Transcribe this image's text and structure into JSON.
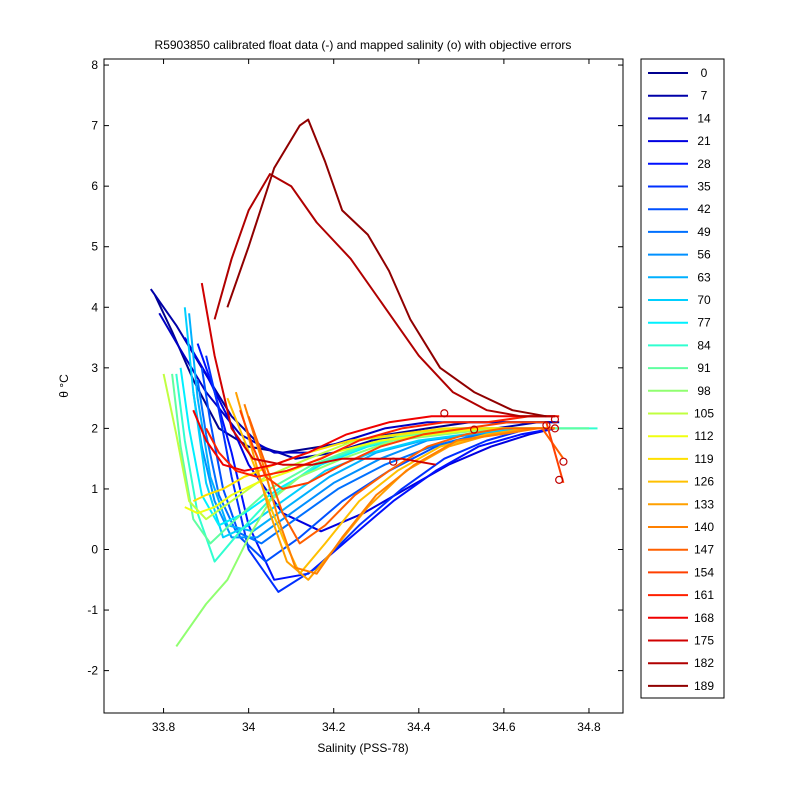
{
  "chart_data": {
    "type": "line",
    "title": "R5903850 calibrated float data (-) and mapped salinity (o) with objective errors",
    "xlabel": "Salinity (PSS-78)",
    "ylabel": "θ °C",
    "xlim": [
      33.66,
      34.88
    ],
    "ylim": [
      -2.7,
      8.1
    ],
    "x_ticks": [
      "33.8",
      "34",
      "34.2",
      "34.4",
      "34.6",
      "34.8"
    ],
    "y_ticks": [
      "8",
      "7",
      "6",
      "5",
      "4",
      "3",
      "2",
      "1",
      "0",
      "-1",
      "-2"
    ],
    "grid": false,
    "legend_position": "outside-right",
    "series": [
      {
        "name": "0",
        "color": "#00008f",
        "x": [
          33.78,
          33.82,
          33.87,
          33.93,
          34.0,
          34.08,
          34.17,
          34.25,
          34.33,
          34.42,
          34.52,
          34.63,
          34.72
        ],
        "y": [
          4.2,
          3.6,
          2.8,
          2.0,
          1.7,
          1.6,
          1.7,
          1.8,
          1.9,
          2.0,
          2.1,
          2.1,
          2.1
        ]
      },
      {
        "name": "7",
        "color": "#0000a8",
        "x": [
          33.77,
          33.83,
          33.89,
          33.96,
          34.03,
          34.11,
          34.2,
          34.29,
          34.38,
          34.48,
          34.58,
          34.68,
          34.73
        ],
        "y": [
          4.3,
          3.7,
          3.0,
          2.2,
          1.7,
          1.5,
          1.6,
          1.8,
          1.9,
          2.0,
          2.0,
          2.1,
          2.1
        ]
      },
      {
        "name": "14",
        "color": "#0000c4",
        "x": [
          33.79,
          33.84,
          33.9,
          33.98,
          34.06,
          34.14,
          34.23,
          34.32,
          34.42,
          34.52,
          34.62,
          34.71
        ],
        "y": [
          3.9,
          3.3,
          2.6,
          1.9,
          1.6,
          1.6,
          1.8,
          2.0,
          2.1,
          2.1,
          2.1,
          2.1
        ]
      },
      {
        "name": "21",
        "color": "#0000e0",
        "x": [
          33.85,
          33.9,
          33.95,
          34.0,
          34.08,
          34.17,
          34.27,
          34.37,
          34.47,
          34.57,
          34.66,
          34.72
        ],
        "y": [
          3.5,
          2.9,
          2.2,
          1.4,
          0.6,
          0.3,
          0.6,
          1.0,
          1.4,
          1.7,
          1.9,
          2.0
        ]
      },
      {
        "name": "28",
        "color": "#0010ff",
        "x": [
          33.88,
          33.92,
          33.96,
          34.0,
          34.06,
          34.14,
          34.24,
          34.34,
          34.44,
          34.54,
          34.64,
          34.72
        ],
        "y": [
          3.4,
          2.6,
          1.6,
          0.4,
          -0.5,
          -0.4,
          0.2,
          0.8,
          1.3,
          1.7,
          1.9,
          2.0
        ]
      },
      {
        "name": "35",
        "color": "#0030ff",
        "x": [
          33.9,
          33.93,
          33.96,
          34.0,
          34.07,
          34.16,
          34.26,
          34.36,
          34.46,
          34.56,
          34.66,
          34.72
        ],
        "y": [
          3.2,
          2.3,
          1.2,
          0.0,
          -0.7,
          -0.3,
          0.4,
          1.0,
          1.5,
          1.8,
          2.0,
          2.0
        ]
      },
      {
        "name": "42",
        "color": "#0050ff",
        "x": [
          33.89,
          33.91,
          33.94,
          33.98,
          34.04,
          34.12,
          34.22,
          34.33,
          34.44,
          34.55,
          34.65,
          34.72
        ],
        "y": [
          3.0,
          2.1,
          1.0,
          0.2,
          -0.2,
          0.2,
          0.8,
          1.3,
          1.7,
          1.9,
          2.0,
          2.0
        ]
      },
      {
        "name": "49",
        "color": "#0070ff",
        "x": [
          33.88,
          33.9,
          33.93,
          33.97,
          34.03,
          34.11,
          34.21,
          34.32,
          34.43,
          34.54,
          34.65,
          34.72
        ],
        "y": [
          2.8,
          1.9,
          0.9,
          0.3,
          0.1,
          0.5,
          1.0,
          1.4,
          1.7,
          1.9,
          2.0,
          2.0
        ]
      },
      {
        "name": "56",
        "color": "#0090ff",
        "x": [
          33.87,
          33.89,
          33.92,
          33.96,
          34.02,
          34.1,
          34.2,
          34.31,
          34.42,
          34.53,
          34.64,
          34.72
        ],
        "y": [
          2.6,
          1.7,
          0.8,
          0.2,
          0.2,
          0.6,
          1.1,
          1.5,
          1.8,
          1.9,
          2.0,
          2.0
        ]
      },
      {
        "name": "63",
        "color": "#00b0ff",
        "x": [
          33.86,
          33.88,
          33.91,
          33.95,
          34.01,
          34.09,
          34.19,
          34.3,
          34.41,
          34.52,
          34.63,
          34.72
        ],
        "y": [
          3.9,
          2.5,
          1.2,
          0.4,
          0.3,
          0.7,
          1.2,
          1.6,
          1.8,
          1.9,
          2.0,
          2.0
        ]
      },
      {
        "name": "70",
        "color": "#00d0ff",
        "x": [
          33.85,
          33.87,
          33.9,
          33.94,
          34.0,
          34.08,
          34.18,
          34.29,
          34.4,
          34.51,
          34.62,
          34.72
        ],
        "y": [
          4.0,
          2.6,
          1.1,
          0.2,
          0.4,
          0.8,
          1.3,
          1.6,
          1.8,
          1.9,
          2.0,
          2.0
        ]
      },
      {
        "name": "77",
        "color": "#00f0ff",
        "x": [
          33.84,
          33.86,
          33.89,
          33.93,
          33.99,
          34.07,
          34.17,
          34.28,
          34.4,
          34.51,
          34.62,
          34.72,
          34.8
        ],
        "y": [
          3.0,
          2.0,
          0.9,
          0.4,
          0.6,
          1.0,
          1.4,
          1.7,
          1.9,
          2.0,
          2.0,
          2.0,
          2.0
        ]
      },
      {
        "name": "84",
        "color": "#30ffd0",
        "x": [
          33.83,
          33.85,
          33.88,
          33.92,
          33.98,
          34.06,
          34.16,
          34.27,
          34.39,
          34.5,
          34.62,
          34.72,
          34.82
        ],
        "y": [
          2.9,
          1.8,
          0.6,
          -0.2,
          0.3,
          0.9,
          1.4,
          1.7,
          1.9,
          2.0,
          2.0,
          2.0,
          2.0
        ]
      },
      {
        "name": "91",
        "color": "#60ffa0",
        "x": [
          33.82,
          33.84,
          33.87,
          33.91,
          33.97,
          34.05,
          34.15,
          34.26,
          34.38,
          34.5,
          34.62,
          34.72,
          34.8
        ],
        "y": [
          2.9,
          1.7,
          0.5,
          0.1,
          0.5,
          1.0,
          1.4,
          1.7,
          1.9,
          2.0,
          2.0,
          2.0,
          2.0
        ]
      },
      {
        "name": "98",
        "color": "#90ff70",
        "x": [
          33.83,
          33.86,
          33.9,
          33.95,
          34.0,
          34.05,
          34.12,
          34.22,
          34.34,
          34.46,
          34.58,
          34.7
        ],
        "y": [
          -1.6,
          -1.3,
          -0.9,
          -0.5,
          0.2,
          0.8,
          1.2,
          1.5,
          1.8,
          1.9,
          2.0,
          2.0
        ]
      },
      {
        "name": "105",
        "color": "#c0ff40",
        "x": [
          33.8,
          33.83,
          33.86,
          33.9,
          33.96,
          34.04,
          34.14,
          34.25,
          34.37,
          34.49,
          34.61,
          34.72
        ],
        "y": [
          2.9,
          1.9,
          0.8,
          0.5,
          0.8,
          1.2,
          1.5,
          1.8,
          1.9,
          2.0,
          2.0,
          2.0
        ]
      },
      {
        "name": "112",
        "color": "#f0ff10",
        "x": [
          33.85,
          33.88,
          33.92,
          33.96,
          34.02,
          34.1,
          34.2,
          34.31,
          34.43,
          34.55,
          34.66,
          34.72
        ],
        "y": [
          0.7,
          0.6,
          0.7,
          0.9,
          1.1,
          1.3,
          1.6,
          1.8,
          1.9,
          2.0,
          2.0,
          2.0
        ]
      },
      {
        "name": "119",
        "color": "#ffe000",
        "x": [
          33.87,
          33.9,
          33.94,
          33.99,
          34.06,
          34.14,
          34.24,
          34.35,
          34.46,
          34.57,
          34.67,
          34.72
        ],
        "y": [
          0.8,
          0.9,
          1.0,
          1.2,
          1.4,
          1.6,
          1.8,
          1.9,
          2.0,
          2.0,
          2.0,
          2.0
        ]
      },
      {
        "name": "126",
        "color": "#ffc000",
        "x": [
          33.95,
          33.99,
          34.04,
          34.08,
          34.12,
          34.18,
          34.26,
          34.35,
          34.45,
          34.56,
          34.66,
          34.72
        ],
        "y": [
          2.5,
          1.8,
          0.9,
          0.2,
          -0.4,
          0.1,
          0.8,
          1.3,
          1.7,
          1.9,
          2.0,
          2.0
        ]
      },
      {
        "name": "133",
        "color": "#ffa000",
        "x": [
          33.97,
          34.01,
          34.05,
          34.09,
          34.14,
          34.2,
          34.28,
          34.37,
          34.47,
          34.57,
          34.67,
          34.72
        ],
        "y": [
          2.6,
          1.6,
          0.6,
          -0.2,
          -0.5,
          0.0,
          0.7,
          1.3,
          1.7,
          1.9,
          2.0,
          2.0
        ]
      },
      {
        "name": "140",
        "color": "#ff8000",
        "x": [
          33.99,
          34.03,
          34.07,
          34.11,
          34.16,
          34.22,
          34.3,
          34.39,
          34.49,
          34.59,
          34.68,
          34.72
        ],
        "y": [
          2.4,
          1.5,
          0.5,
          -0.3,
          -0.4,
          0.2,
          0.9,
          1.4,
          1.8,
          1.9,
          2.0,
          2.0
        ]
      },
      {
        "name": "147",
        "color": "#ff6000",
        "x": [
          34.0,
          34.04,
          34.08,
          34.12,
          34.18,
          34.25,
          34.33,
          34.42,
          34.51,
          34.6,
          34.69,
          34.74
        ],
        "y": [
          2.2,
          1.4,
          0.6,
          0.1,
          0.4,
          0.9,
          1.3,
          1.7,
          1.9,
          2.0,
          2.0,
          1.5
        ]
      },
      {
        "name": "154",
        "color": "#ff4000",
        "x": [
          33.98,
          34.01,
          34.04,
          34.08,
          34.14,
          34.22,
          34.31,
          34.41,
          34.51,
          34.61,
          34.7,
          34.74
        ],
        "y": [
          2.3,
          1.7,
          1.2,
          1.0,
          1.1,
          1.4,
          1.7,
          1.9,
          2.0,
          2.1,
          2.1,
          1.1
        ]
      },
      {
        "name": "161",
        "color": "#ff2000",
        "x": [
          33.9,
          33.93,
          33.97,
          34.02,
          34.09,
          34.17,
          34.26,
          34.36,
          34.46,
          34.56,
          34.66,
          34.73
        ],
        "y": [
          2.0,
          1.6,
          1.3,
          1.2,
          1.3,
          1.5,
          1.8,
          2.0,
          2.1,
          2.1,
          2.2,
          2.2
        ]
      },
      {
        "name": "168",
        "color": "#f00000",
        "x": [
          33.87,
          33.9,
          33.94,
          33.99,
          34.06,
          34.14,
          34.23,
          34.33,
          34.43,
          34.54,
          34.64,
          34.72
        ],
        "y": [
          2.3,
          1.8,
          1.4,
          1.3,
          1.4,
          1.6,
          1.9,
          2.1,
          2.2,
          2.2,
          2.2,
          2.2
        ]
      },
      {
        "name": "175",
        "color": "#d00000",
        "x": [
          33.89,
          33.92,
          33.96,
          34.01,
          34.08,
          34.15,
          34.22,
          34.29,
          34.36,
          34.44
        ],
        "y": [
          4.4,
          3.2,
          2.0,
          1.5,
          1.4,
          1.4,
          1.5,
          1.5,
          1.5,
          1.4
        ]
      },
      {
        "name": "182",
        "color": "#b00000",
        "x": [
          33.92,
          33.96,
          34.0,
          34.05,
          34.1,
          34.16,
          34.24,
          34.32,
          34.4,
          34.48,
          34.56,
          34.64,
          34.72
        ],
        "y": [
          3.8,
          4.8,
          5.6,
          6.2,
          6.0,
          5.4,
          4.8,
          4.0,
          3.2,
          2.6,
          2.3,
          2.2,
          2.2
        ]
      },
      {
        "name": "189",
        "color": "#900000",
        "x": [
          33.95,
          34.0,
          34.06,
          34.12,
          34.14,
          34.18,
          34.22,
          34.28,
          34.33,
          34.38,
          34.45,
          34.53,
          34.62,
          34.7
        ],
        "y": [
          4.0,
          5.0,
          6.3,
          7.0,
          7.1,
          6.4,
          5.6,
          5.2,
          4.6,
          3.8,
          3.0,
          2.6,
          2.3,
          2.2
        ]
      }
    ],
    "mapped_points": [
      {
        "x": 34.34,
        "y": 1.45
      },
      {
        "x": 34.46,
        "y": 2.25
      },
      {
        "x": 34.53,
        "y": 1.98
      },
      {
        "x": 34.7,
        "y": 2.05
      },
      {
        "x": 34.72,
        "y": 2.15
      },
      {
        "x": 34.74,
        "y": 1.45
      },
      {
        "x": 34.73,
        "y": 1.15
      },
      {
        "x": 34.72,
        "y": 2.0
      }
    ]
  }
}
